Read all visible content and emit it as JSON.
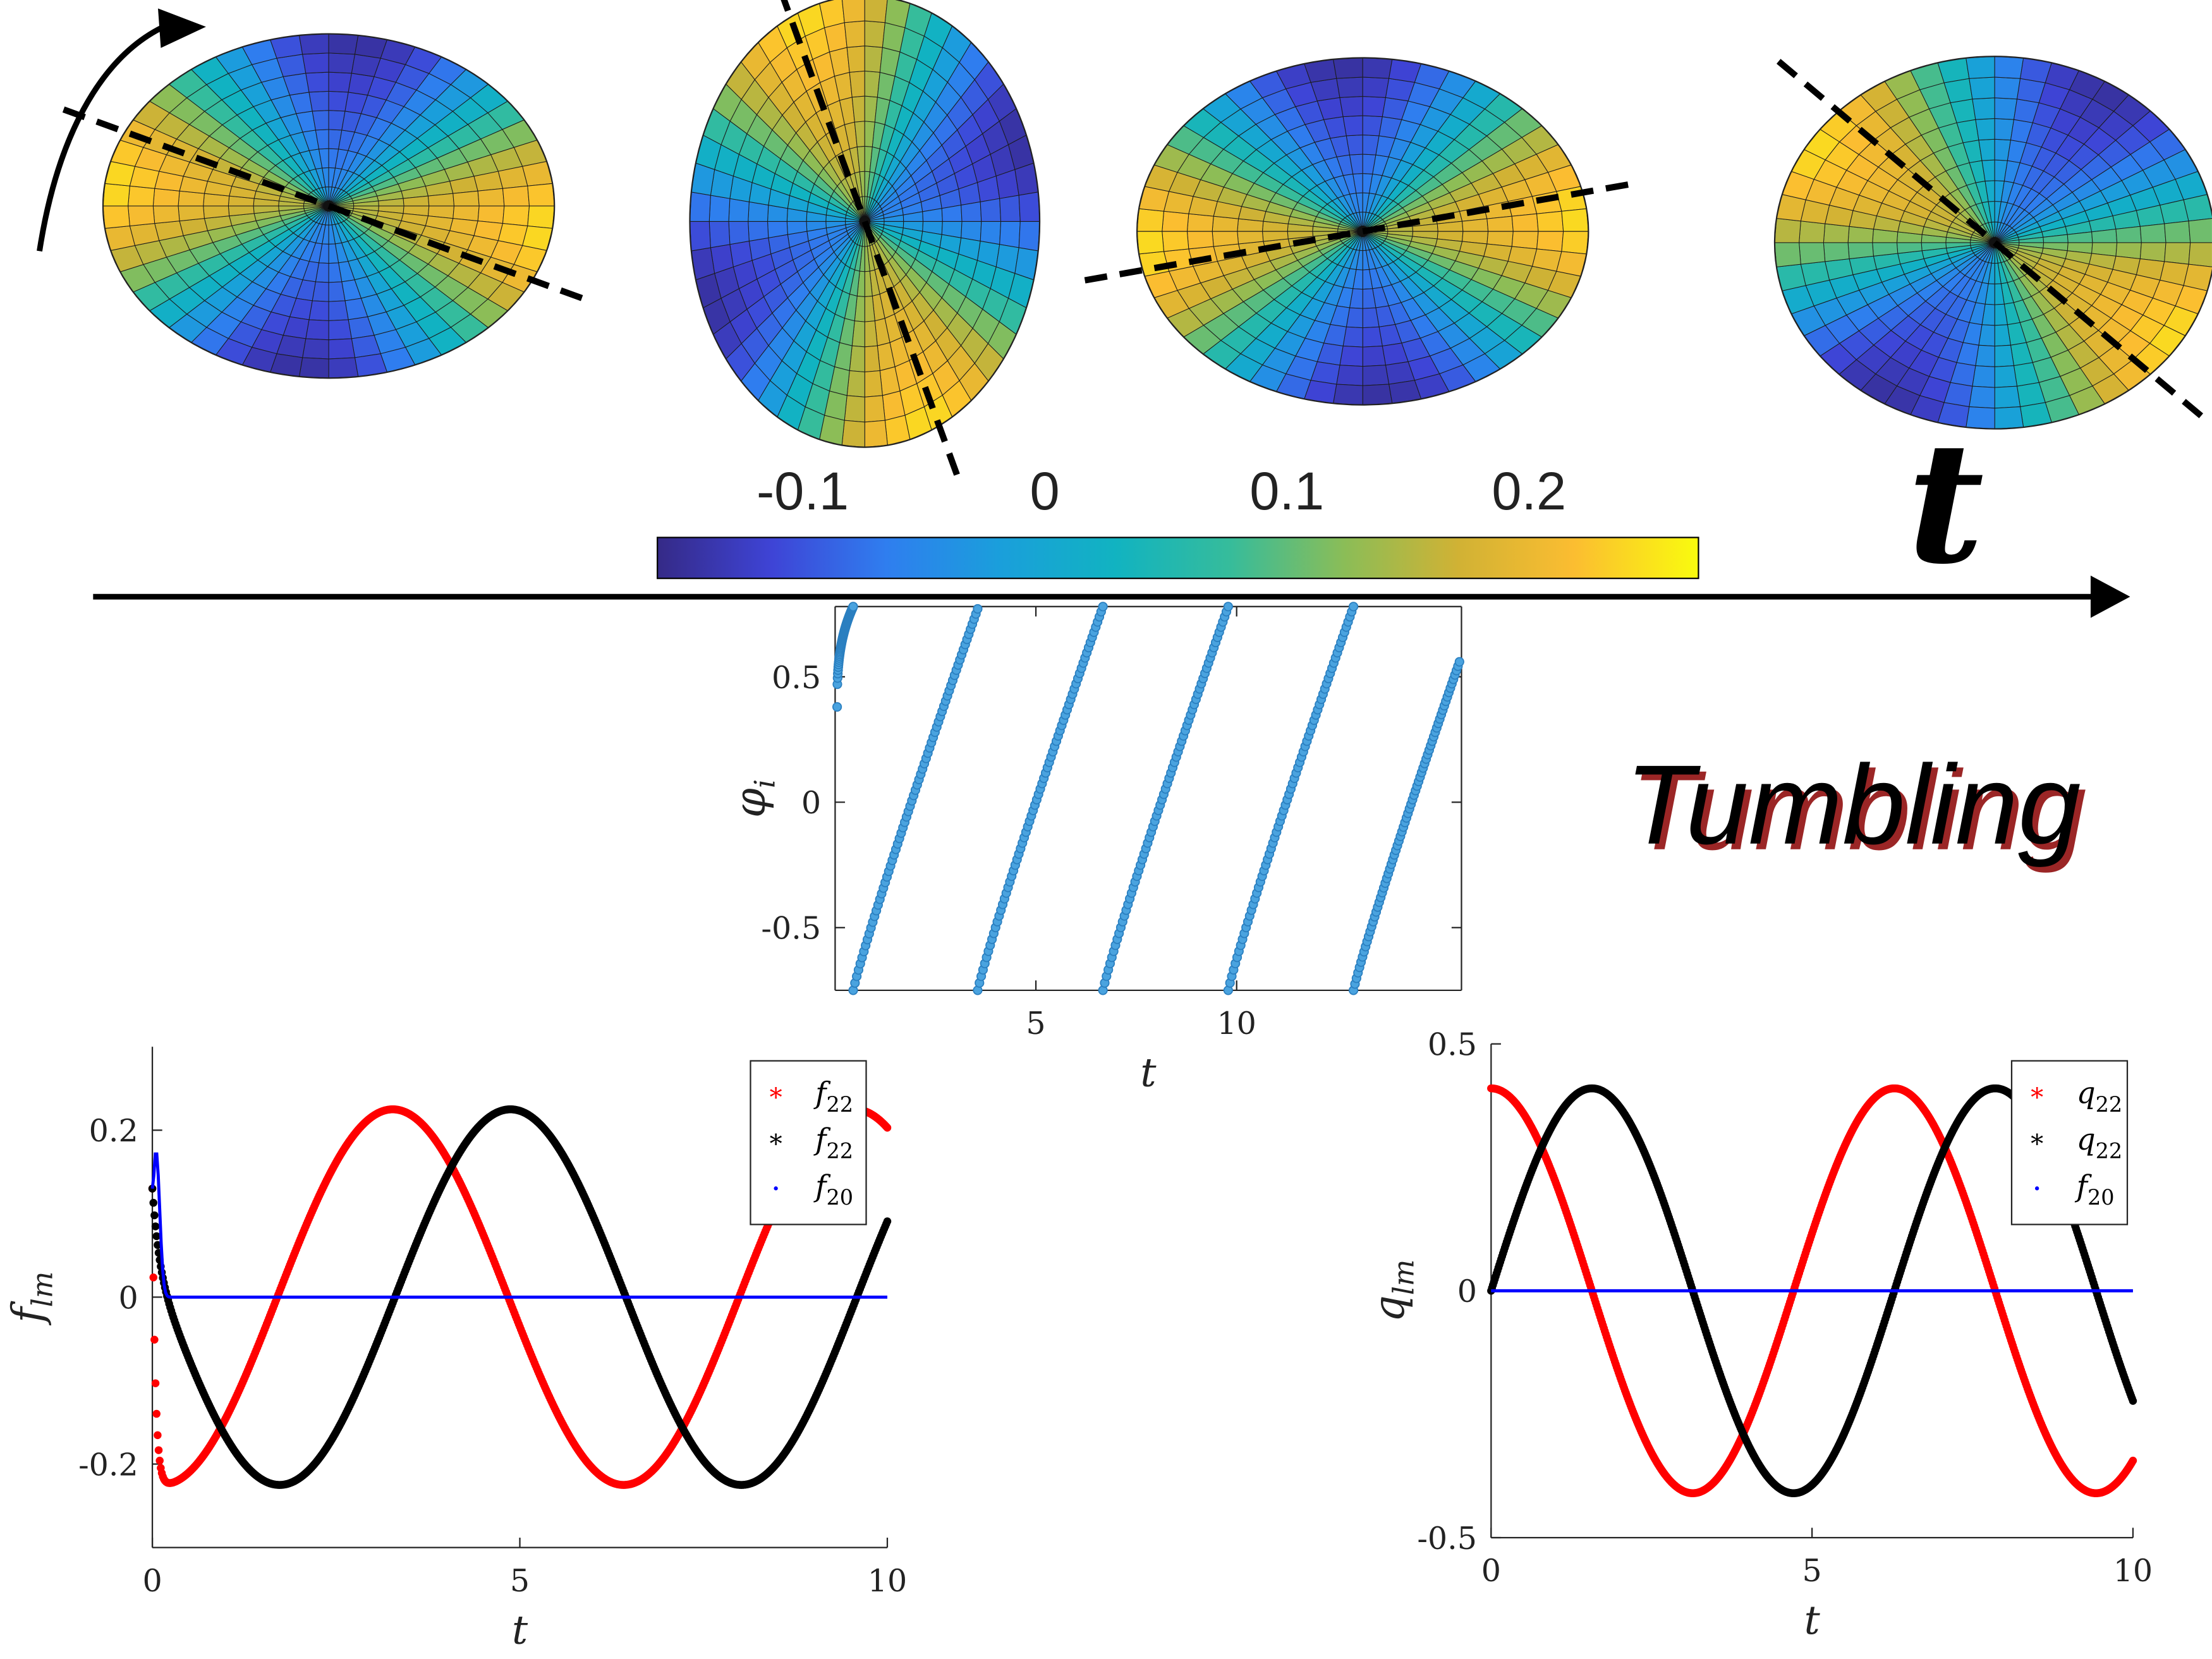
{
  "labels": {
    "time_symbol": "t",
    "regime": "Tumbling"
  },
  "colorbar": {
    "ticks": [
      "-0.1",
      "0",
      "0.1",
      "0.2"
    ],
    "tick_values": [
      -0.1,
      0,
      0.1,
      0.2
    ],
    "range": [
      -0.16,
      0.27
    ],
    "colormap": "parula",
    "stops": [
      "#352a87",
      "#3e44d6",
      "#2f7eef",
      "#1a9fdb",
      "#11b3c1",
      "#36bc9b",
      "#8bbd57",
      "#d1b234",
      "#fbbd31",
      "#f9fb0e"
    ]
  },
  "ellipsoids": [
    {
      "axis_tilt_deg": 20,
      "shape_rotation_deg": 8
    },
    {
      "axis_tilt_deg": 70,
      "shape_rotation_deg": 68
    },
    {
      "axis_tilt_deg": -10,
      "shape_rotation_deg": -5
    },
    {
      "axis_tilt_deg": 40,
      "shape_rotation_deg": 32
    }
  ],
  "chart_data": [
    {
      "type": "scatter",
      "name": "phi_i",
      "xlabel": "t",
      "ylabel": "φ_i",
      "xlim": [
        0,
        15.6
      ],
      "ylim": [
        -0.75,
        0.78
      ],
      "xticks": [
        "5",
        "10"
      ],
      "xtick_values": [
        5,
        10
      ],
      "yticks": [
        "0.5",
        "0",
        "-0.5"
      ],
      "ytick_values": [
        0.5,
        0,
        -0.5
      ],
      "period": 3.12,
      "phase_start": 0.38,
      "color": "#2a7fc0",
      "segments": [
        {
          "t0": 0.05,
          "t1": 0.45,
          "kind": "initial"
        },
        {
          "t0": 0.45,
          "t1": 3.55,
          "kind": "wrap"
        },
        {
          "t0": 3.55,
          "t1": 6.67,
          "kind": "wrap"
        },
        {
          "t0": 6.67,
          "t1": 9.79,
          "kind": "wrap"
        },
        {
          "t0": 9.79,
          "t1": 12.91,
          "kind": "wrap"
        },
        {
          "t0": 12.91,
          "t1": 15.55,
          "kind": "wrap"
        }
      ]
    },
    {
      "type": "scatter",
      "name": "f_lm",
      "xlabel": "t",
      "ylabel": "f_lm",
      "xlim": [
        0,
        10
      ],
      "ylim": [
        -0.3,
        0.3
      ],
      "xticks": [
        "0",
        "5",
        "10"
      ],
      "xtick_values": [
        0,
        5,
        10
      ],
      "yticks": [
        "0.2",
        "0",
        "-0.2"
      ],
      "ytick_values": [
        0.2,
        0,
        -0.2
      ],
      "amplitude": 0.225,
      "omega": 1.0,
      "series": [
        {
          "name": "f₂₂",
          "name_base": "f",
          "name_sub": "22",
          "color": "#ff0000",
          "marker": "*",
          "phase": -1.7
        },
        {
          "name": "f₂₂",
          "name_base": "f",
          "name_sub": "22",
          "color": "#000000",
          "marker": "*",
          "phase": -0.16
        },
        {
          "name": "f₂₀",
          "name_base": "f",
          "name_sub": "20",
          "color": "#0000ff",
          "marker": "·",
          "peak": 0.175
        }
      ]
    },
    {
      "type": "scatter",
      "name": "q_lm",
      "xlabel": "t",
      "ylabel": "q_lm",
      "xlim": [
        0,
        10
      ],
      "ylim": [
        -0.5,
        0.5
      ],
      "xticks": [
        "0",
        "5",
        "10"
      ],
      "xtick_values": [
        0,
        5,
        10
      ],
      "yticks": [
        "0.5",
        "0",
        "-0.5"
      ],
      "ytick_values": [
        0.5,
        0,
        -0.5
      ],
      "amplitude": 0.41,
      "omega": 1.0,
      "series": [
        {
          "name": "q₂₂",
          "name_base": "q",
          "name_sub": "22",
          "color": "#ff0000",
          "marker": "*",
          "function": "cos"
        },
        {
          "name": "q₂₂",
          "name_base": "q",
          "name_sub": "22",
          "color": "#000000",
          "marker": "*",
          "function": "sin"
        },
        {
          "name": "f₂₀",
          "name_base": "f",
          "name_sub": "20",
          "color": "#0000ff",
          "marker": "·",
          "value": 0
        }
      ]
    }
  ]
}
